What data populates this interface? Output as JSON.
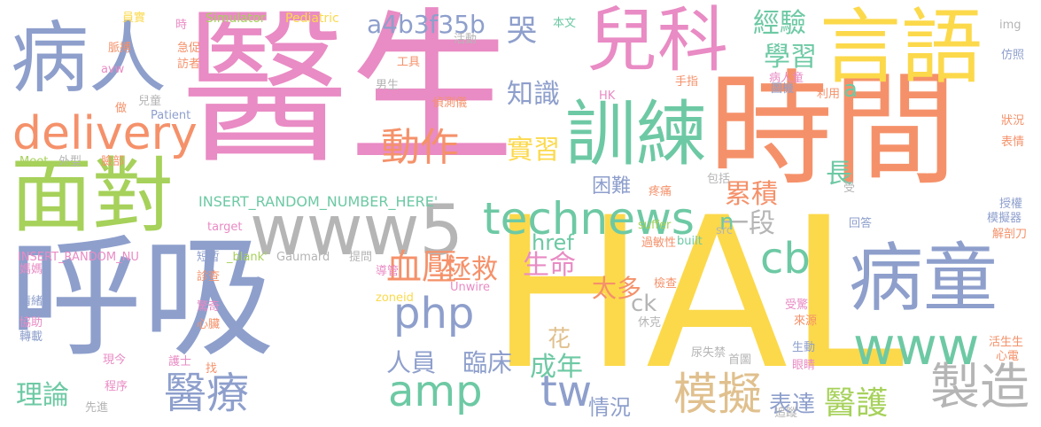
{
  "palette": {
    "yellow": "#FCD94B",
    "pink": "#E98BC4",
    "orange": "#F5916A",
    "blue": "#8E9FCC",
    "green": "#A6D15A",
    "teal": "#6DC9A4",
    "gray": "#B5B5B5",
    "tan": "#E0C08E"
  },
  "words": [
    {
      "text": "HAL",
      "color": "yellow"
    },
    {
      "text": "醫生",
      "color": "pink"
    },
    {
      "text": "時間",
      "color": "orange"
    },
    {
      "text": "呼吸",
      "color": "blue"
    },
    {
      "text": "言語",
      "color": "yellow"
    },
    {
      "text": "兒科",
      "color": "pink"
    },
    {
      "text": "病人",
      "color": "blue"
    },
    {
      "text": "面對",
      "color": "green"
    },
    {
      "text": "訓練",
      "color": "teal"
    },
    {
      "text": "病童",
      "color": "blue"
    },
    {
      "text": "www5",
      "color": "gray"
    },
    {
      "text": "technews",
      "color": "teal"
    },
    {
      "text": "delivery",
      "color": "orange"
    },
    {
      "text": "www",
      "color": "teal"
    },
    {
      "text": "製造",
      "color": "gray"
    },
    {
      "text": "amp",
      "color": "teal"
    },
    {
      "text": "php",
      "color": "blue"
    },
    {
      "text": "模擬",
      "color": "tan"
    },
    {
      "text": "醫療",
      "color": "blue"
    },
    {
      "text": "cb",
      "color": "teal"
    },
    {
      "text": "tw",
      "color": "blue"
    },
    {
      "text": "動作",
      "color": "orange"
    },
    {
      "text": "血壓",
      "color": "orange"
    },
    {
      "text": "醫護",
      "color": "green"
    },
    {
      "text": "a4b3f35b",
      "color": "blue"
    },
    {
      "text": "知識",
      "color": "blue"
    },
    {
      "text": "實習",
      "color": "yellow"
    },
    {
      "text": "經驗",
      "color": "teal"
    },
    {
      "text": "學習",
      "color": "teal"
    },
    {
      "text": "哭",
      "color": "blue"
    },
    {
      "text": "累積",
      "color": "orange"
    },
    {
      "text": "困難",
      "color": "blue"
    },
    {
      "text": "長",
      "color": "teal"
    },
    {
      "text": "一段",
      "color": "gray"
    },
    {
      "text": "理論",
      "color": "teal"
    },
    {
      "text": "人員",
      "color": "blue"
    },
    {
      "text": "臨床",
      "color": "blue"
    },
    {
      "text": "成年",
      "color": "teal"
    },
    {
      "text": "拯救",
      "color": "orange"
    },
    {
      "text": "生命",
      "color": "pink"
    },
    {
      "text": "太多",
      "color": "orange"
    },
    {
      "text": "表達",
      "color": "blue"
    },
    {
      "text": "情況",
      "color": "blue"
    },
    {
      "text": "花",
      "color": "tan"
    },
    {
      "text": "href",
      "color": "teal"
    },
    {
      "text": "ck",
      "color": "gray"
    },
    {
      "text": "a",
      "color": "teal"
    },
    {
      "text": "n",
      "color": "teal"
    },
    {
      "text": "INSERT_RANDOM_NUMBER_HERE'",
      "color": "teal"
    },
    {
      "text": "INSERT_RANDOM_NU",
      "color": "pink"
    },
    {
      "text": "Simulator",
      "color": "green"
    },
    {
      "text": "Pediatric",
      "color": "yellow"
    },
    {
      "text": "員實",
      "color": "yellow"
    },
    {
      "text": "時",
      "color": "pink"
    },
    {
      "text": "本文",
      "color": "teal"
    },
    {
      "text": "活動",
      "color": "gray"
    },
    {
      "text": "工具",
      "color": "orange"
    },
    {
      "text": "男生",
      "color": "gray"
    },
    {
      "text": "偵測儀",
      "color": "orange"
    },
    {
      "text": "脈搏",
      "color": "orange"
    },
    {
      "text": "急促",
      "color": "orange"
    },
    {
      "text": "訪者",
      "color": "orange"
    },
    {
      "text": "avw",
      "color": "pink"
    },
    {
      "text": "兒童",
      "color": "gray"
    },
    {
      "text": "做",
      "color": "orange"
    },
    {
      "text": "Patient",
      "color": "blue"
    },
    {
      "text": "Meet",
      "color": "green"
    },
    {
      "text": "外型",
      "color": "gray"
    },
    {
      "text": "臉部",
      "color": "orange"
    },
    {
      "text": "HK",
      "color": "pink"
    },
    {
      "text": "疼痛",
      "color": "orange"
    },
    {
      "text": "包括",
      "color": "gray"
    },
    {
      "text": "target",
      "color": "pink"
    },
    {
      "text": "suffer",
      "color": "green"
    },
    {
      "text": "built",
      "color": "teal"
    },
    {
      "text": "過敏性",
      "color": "orange"
    },
    {
      "text": "src",
      "color": "gray"
    },
    {
      "text": "短暫",
      "color": "blue"
    },
    {
      "text": "_blank'",
      "color": "green"
    },
    {
      "text": "Gaumard",
      "color": "gray"
    },
    {
      "text": "提問",
      "color": "gray"
    },
    {
      "text": "導管",
      "color": "pink"
    },
    {
      "text": "Unwire",
      "color": "pink"
    },
    {
      "text": "zoneid",
      "color": "yellow"
    },
    {
      "text": "檢查",
      "color": "orange"
    },
    {
      "text": "診查",
      "color": "orange"
    },
    {
      "text": "驚奇",
      "color": "pink"
    },
    {
      "text": "心臟",
      "color": "orange"
    },
    {
      "text": "休克",
      "color": "gray"
    },
    {
      "text": "護士",
      "color": "pink"
    },
    {
      "text": "找",
      "color": "orange"
    },
    {
      "text": "程序",
      "color": "pink"
    },
    {
      "text": "先進",
      "color": "gray"
    },
    {
      "text": "現今",
      "color": "pink"
    },
    {
      "text": "尿失禁",
      "color": "gray"
    },
    {
      "text": "首圖",
      "color": "gray"
    },
    {
      "text": "生動",
      "color": "blue"
    },
    {
      "text": "眼睛",
      "color": "pink"
    },
    {
      "text": "追蹤",
      "color": "gray"
    },
    {
      "text": "來源",
      "color": "orange"
    },
    {
      "text": "受驚",
      "color": "pink"
    },
    {
      "text": "手指",
      "color": "orange"
    },
    {
      "text": "圖機",
      "color": "blue"
    },
    {
      "text": "病人童",
      "color": "pink"
    },
    {
      "text": "利用",
      "color": "orange"
    },
    {
      "text": "img",
      "color": "gray"
    },
    {
      "text": "仿照",
      "color": "blue"
    },
    {
      "text": "狀況",
      "color": "orange"
    },
    {
      "text": "表情",
      "color": "orange"
    },
    {
      "text": "受",
      "color": "gray"
    },
    {
      "text": "授權",
      "color": "blue"
    },
    {
      "text": "回答",
      "color": "blue"
    },
    {
      "text": "模擬器",
      "color": "blue"
    },
    {
      "text": "解剖刀",
      "color": "orange"
    },
    {
      "text": "活生生",
      "color": "orange"
    },
    {
      "text": "心電",
      "color": "orange"
    },
    {
      "text": "媽媽",
      "color": "pink"
    },
    {
      "text": "情緒",
      "color": "blue"
    },
    {
      "text": "協助",
      "color": "pink"
    },
    {
      "text": "轉載",
      "color": "blue"
    }
  ]
}
